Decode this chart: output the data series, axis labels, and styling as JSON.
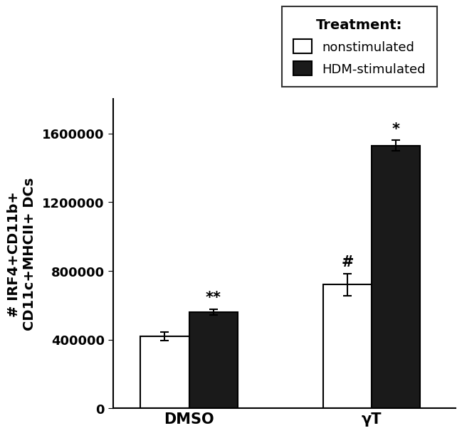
{
  "groups": [
    "DMSO",
    "γT"
  ],
  "nonstim_values": [
    420000,
    720000
  ],
  "hdm_values": [
    560000,
    1530000
  ],
  "nonstim_errors": [
    25000,
    65000
  ],
  "hdm_errors": [
    18000,
    30000
  ],
  "bar_width": 0.32,
  "group_positions": [
    1.0,
    2.2
  ],
  "ylim": [
    0,
    1800000
  ],
  "yticks": [
    0,
    400000,
    800000,
    1200000,
    1600000
  ],
  "ylabel": "# IRF4+CD11b+\nCD11c+MHCII+ DCs",
  "legend_title": "Treatment:",
  "legend_labels": [
    "nonstimulated",
    "HDM-stimulated"
  ],
  "nonstim_color": "#ffffff",
  "hdm_color": "#1a1a1a",
  "edge_color": "#000000",
  "annotations_nonstim": [
    "",
    "#"
  ],
  "annotations_hdm": [
    "**",
    "*"
  ],
  "background_color": "#ffffff",
  "label_fontsize": 13,
  "tick_fontsize": 13,
  "legend_fontsize": 13,
  "annot_fontsize": 15,
  "xticklabel_fontsize": 15
}
